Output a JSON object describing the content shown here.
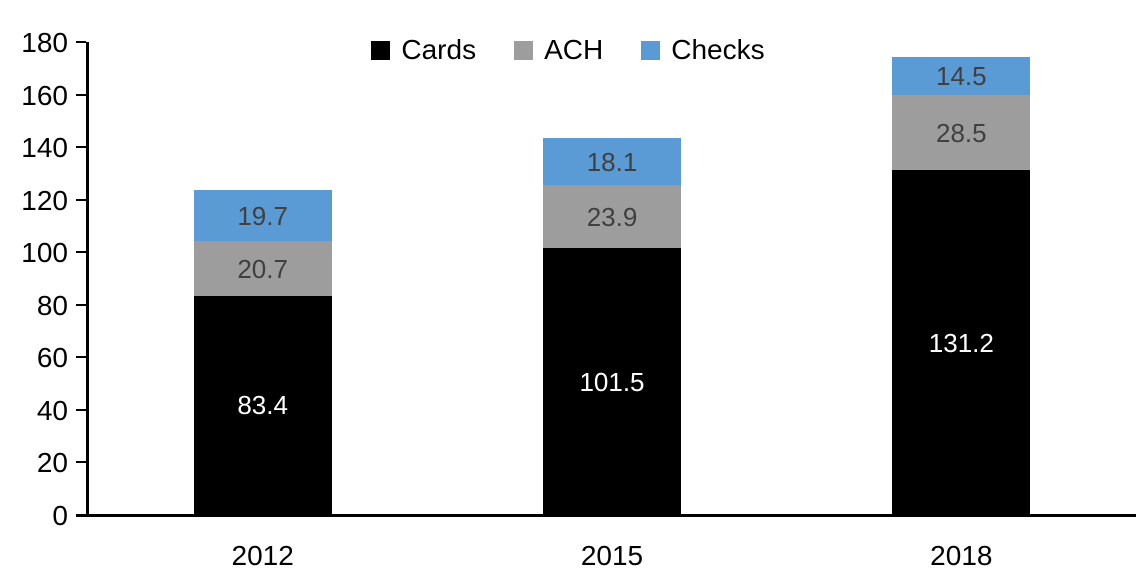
{
  "chart_data": {
    "type": "bar",
    "stacked": true,
    "title": "",
    "xlabel": "",
    "ylabel": "",
    "categories": [
      "2012",
      "2015",
      "2018"
    ],
    "series": [
      {
        "name": "Cards",
        "color": "#000000",
        "label_color": "#ffffff",
        "values": [
          83.4,
          101.5,
          131.2
        ]
      },
      {
        "name": "ACH",
        "color": "#9d9d9d",
        "label_color": "#404040",
        "values": [
          20.7,
          23.9,
          28.5
        ]
      },
      {
        "name": "Checks",
        "color": "#5b9bd5",
        "label_color": "#404040",
        "values": [
          19.7,
          18.1,
          14.5
        ]
      }
    ],
    "ylim": [
      0,
      180
    ],
    "ytick_step": 20,
    "ytick_labels": [
      "0",
      "20",
      "40",
      "60",
      "80",
      "100",
      "120",
      "140",
      "160",
      "180"
    ],
    "legend_position": "top-center",
    "grid": false,
    "axis_color": "#000000",
    "background_color": "#ffffff"
  }
}
